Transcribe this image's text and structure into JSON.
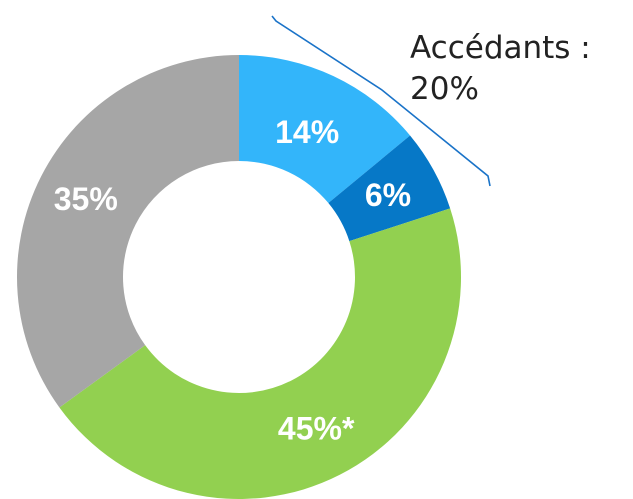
{
  "chart_data": {
    "type": "pie",
    "variant": "donut",
    "start_angle": "12 o'clock, clockwise",
    "slices": [
      {
        "label": "14%",
        "value": 14,
        "color": "#33b5fa"
      },
      {
        "label": "6%",
        "value": 6,
        "color": "#0678c7"
      },
      {
        "label": "45%*",
        "value": 45,
        "color": "#92d050"
      },
      {
        "label": "35%",
        "value": 35,
        "color": "#a6a6a6"
      }
    ],
    "annotation": {
      "line1": "Accédants :",
      "line2": "20%",
      "bracket_color": "#1a73c8"
    }
  }
}
